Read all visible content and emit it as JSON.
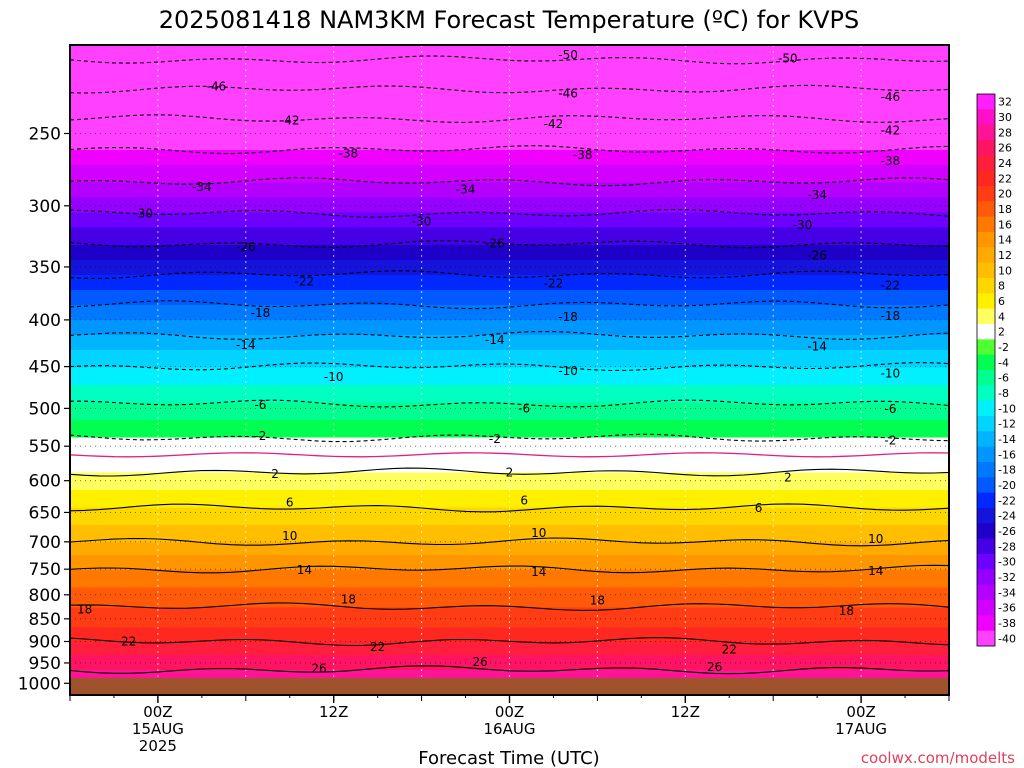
{
  "chart_data": {
    "type": "heatmap",
    "title": "2025081418 NAM3KM Forecast Temperature (ºC) for KVPS",
    "xlabel": "Forecast Time (UTC)",
    "ylabel": "",
    "x_ticks": [
      {
        "lines": [
          "00Z",
          "15AUG",
          "2025"
        ],
        "hour": 6
      },
      {
        "lines": [
          "12Z"
        ],
        "hour": 18
      },
      {
        "lines": [
          "00Z",
          "16AUG"
        ],
        "hour": 30
      },
      {
        "lines": [
          "12Z"
        ],
        "hour": 42
      },
      {
        "lines": [
          "00Z",
          "17AUG"
        ],
        "hour": 54
      }
    ],
    "xlim": [
      0,
      60
    ],
    "y_scale": "log",
    "ylim": [
      1030,
      200
    ],
    "y_ticks": [
      250,
      300,
      350,
      400,
      450,
      500,
      550,
      600,
      650,
      700,
      750,
      800,
      850,
      900,
      950,
      1000
    ],
    "colorbar": {
      "labels": [
        "32",
        "30",
        "28",
        "26",
        "24",
        "22",
        "20",
        "18",
        "16",
        "14",
        "12",
        "10",
        "8",
        "6",
        "4",
        "2",
        "-2",
        "-4",
        "-6",
        "-8",
        "-10",
        "-12",
        "-14",
        "-16",
        "-18",
        "-20",
        "-22",
        "-24",
        "-26",
        "-28",
        "-30",
        "-32",
        "-34",
        "-36",
        "-38",
        "-40"
      ],
      "colors": [
        "#ff1fff",
        "#ff10c8",
        "#ff1496",
        "#ff1464",
        "#ff1e3c",
        "#ff2820",
        "#ff3c14",
        "#ff5a0a",
        "#ff7800",
        "#ff9600",
        "#ffaa00",
        "#ffbe00",
        "#ffd700",
        "#fff000",
        "#ffff60",
        "#ffffff",
        "#50ff30",
        "#00ff50",
        "#00ff90",
        "#00ffc0",
        "#00f0ff",
        "#00d4ff",
        "#00b4ff",
        "#0096ff",
        "#0078ff",
        "#005aff",
        "#0028ff",
        "#1414dc",
        "#1e00c8",
        "#4600e6",
        "#6e00ff",
        "#9600ff",
        "#b400ff",
        "#d200ff",
        "#f000ff",
        "#ff40ff"
      ]
    },
    "temperature_profile": [
      {
        "p": 1000,
        "t": 28
      },
      {
        "p": 950,
        "t": 25
      },
      {
        "p": 900,
        "t": 22
      },
      {
        "p": 850,
        "t": 19
      },
      {
        "p": 800,
        "t": 17
      },
      {
        "p": 750,
        "t": 14
      },
      {
        "p": 700,
        "t": 10
      },
      {
        "p": 650,
        "t": 6.5
      },
      {
        "p": 600,
        "t": 3
      },
      {
        "p": 550,
        "t": -1
      },
      {
        "p": 500,
        "t": -5.5
      },
      {
        "p": 450,
        "t": -10
      },
      {
        "p": 400,
        "t": -16
      },
      {
        "p": 350,
        "t": -23
      },
      {
        "p": 300,
        "t": -31
      },
      {
        "p": 250,
        "t": -40
      },
      {
        "p": 200,
        "t": -52
      }
    ],
    "contours": [
      {
        "value": "-50",
        "labels": [
          {
            "hour": 34,
            "p": 205
          },
          {
            "hour": 49,
            "p": 207
          }
        ]
      },
      {
        "value": "-46",
        "labels": [
          {
            "hour": 10,
            "p": 222
          },
          {
            "hour": 34,
            "p": 226
          },
          {
            "hour": 56,
            "p": 228
          }
        ]
      },
      {
        "value": "-42",
        "labels": [
          {
            "hour": 15,
            "p": 242
          },
          {
            "hour": 33,
            "p": 244
          },
          {
            "hour": 56,
            "p": 248
          }
        ]
      },
      {
        "value": "-38",
        "labels": [
          {
            "hour": 19,
            "p": 263
          },
          {
            "hour": 35,
            "p": 264
          },
          {
            "hour": 56,
            "p": 268
          }
        ]
      },
      {
        "value": "-34",
        "labels": [
          {
            "hour": 9,
            "p": 286
          },
          {
            "hour": 27,
            "p": 288
          },
          {
            "hour": 51,
            "p": 292
          }
        ]
      },
      {
        "value": "-30",
        "labels": [
          {
            "hour": 5,
            "p": 306
          },
          {
            "hour": 24,
            "p": 312
          },
          {
            "hour": 50,
            "p": 315
          }
        ]
      },
      {
        "value": "-26",
        "labels": [
          {
            "hour": 12,
            "p": 333
          },
          {
            "hour": 29,
            "p": 330
          },
          {
            "hour": 51,
            "p": 340
          }
        ]
      },
      {
        "value": "-22",
        "labels": [
          {
            "hour": 16,
            "p": 363
          },
          {
            "hour": 33,
            "p": 365
          },
          {
            "hour": 56,
            "p": 367
          }
        ]
      },
      {
        "value": "-18",
        "labels": [
          {
            "hour": 13,
            "p": 393
          },
          {
            "hour": 34,
            "p": 397
          },
          {
            "hour": 56,
            "p": 396
          }
        ]
      },
      {
        "value": "-14",
        "labels": [
          {
            "hour": 12,
            "p": 426
          },
          {
            "hour": 29,
            "p": 421
          },
          {
            "hour": 51,
            "p": 428
          }
        ]
      },
      {
        "value": "-10",
        "labels": [
          {
            "hour": 18,
            "p": 462
          },
          {
            "hour": 34,
            "p": 455
          },
          {
            "hour": 56,
            "p": 458
          }
        ]
      },
      {
        "value": "-6",
        "labels": [
          {
            "hour": 13,
            "p": 496
          },
          {
            "hour": 31,
            "p": 500
          },
          {
            "hour": 56,
            "p": 501
          }
        ]
      },
      {
        "value": "-2",
        "labels": [
          {
            "hour": 13,
            "p": 536
          },
          {
            "hour": 29,
            "p": 540
          },
          {
            "hour": 56,
            "p": 542
          }
        ]
      },
      {
        "value": "2",
        "labels": [
          {
            "hour": 14,
            "p": 590
          },
          {
            "hour": 30,
            "p": 588
          },
          {
            "hour": 49,
            "p": 595
          }
        ]
      },
      {
        "value": "6",
        "labels": [
          {
            "hour": 15,
            "p": 634
          },
          {
            "hour": 31,
            "p": 631
          },
          {
            "hour": 47,
            "p": 643
          }
        ]
      },
      {
        "value": "10",
        "labels": [
          {
            "hour": 15,
            "p": 690
          },
          {
            "hour": 32,
            "p": 685
          },
          {
            "hour": 55,
            "p": 695
          }
        ]
      },
      {
        "value": "14",
        "labels": [
          {
            "hour": 16,
            "p": 752
          },
          {
            "hour": 32,
            "p": 755
          },
          {
            "hour": 55,
            "p": 753
          }
        ]
      },
      {
        "value": "18",
        "labels": [
          {
            "hour": 1,
            "p": 830
          },
          {
            "hour": 19,
            "p": 810
          },
          {
            "hour": 36,
            "p": 812
          },
          {
            "hour": 53,
            "p": 833
          }
        ]
      },
      {
        "value": "22",
        "labels": [
          {
            "hour": 4,
            "p": 900
          },
          {
            "hour": 21,
            "p": 913
          },
          {
            "hour": 45,
            "p": 918
          }
        ]
      },
      {
        "value": "26",
        "labels": [
          {
            "hour": 17,
            "p": 963
          },
          {
            "hour": 28,
            "p": 948
          },
          {
            "hour": 44,
            "p": 960
          }
        ]
      }
    ]
  },
  "credit": "coolwx.com/modelts"
}
